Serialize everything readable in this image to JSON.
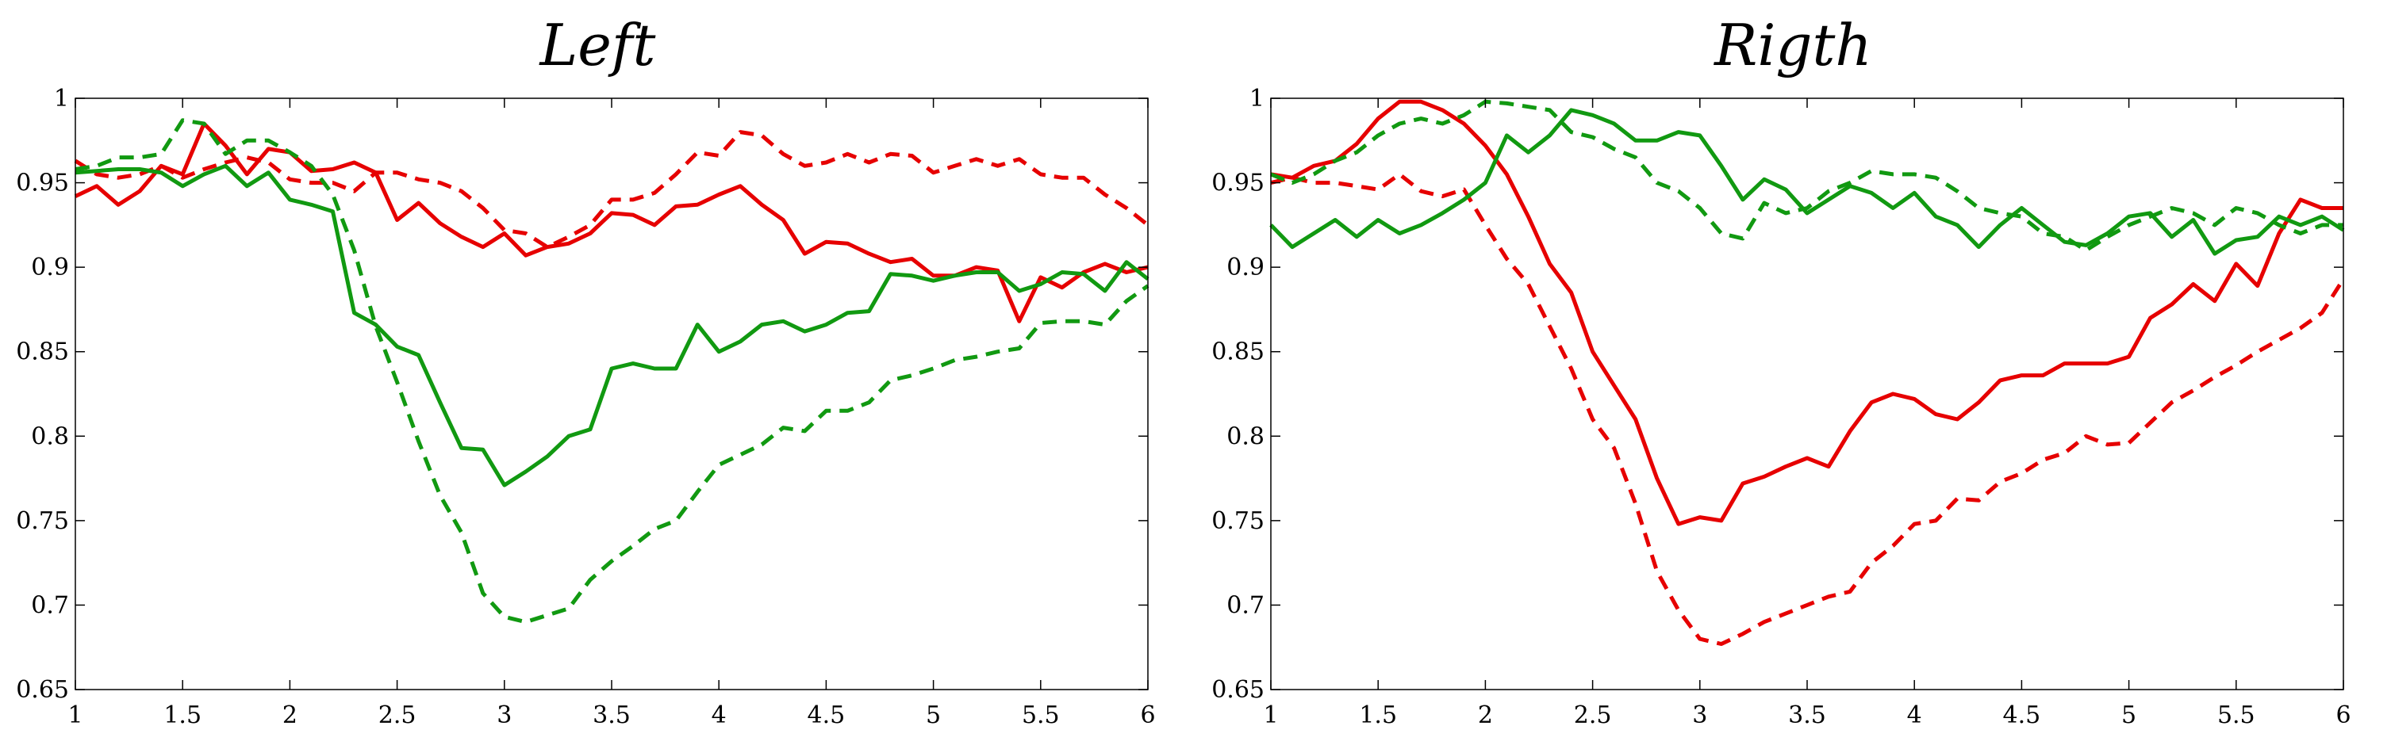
{
  "chart_data": [
    {
      "type": "line",
      "title": "Left",
      "xlim": [
        1,
        6
      ],
      "ylim": [
        0.65,
        1
      ],
      "xticks": [
        "1",
        "1.5",
        "2",
        "2.5",
        "3",
        "3.5",
        "4",
        "4.5",
        "5",
        "5.5",
        "6"
      ],
      "yticks": [
        "0.65",
        "0.7",
        "0.75",
        "0.8",
        "0.85",
        "0.9",
        "0.95",
        "1"
      ],
      "grid": false,
      "series": [
        {
          "color": "#e60000",
          "dash": "solid",
          "x": [
            1,
            1.1,
            1.2,
            1.3,
            1.4,
            1.5,
            1.6,
            1.7,
            1.8,
            1.9,
            2,
            2.1,
            2.2,
            2.3,
            2.4,
            2.5,
            2.6,
            2.7,
            2.8,
            2.9,
            3,
            3.1,
            3.2,
            3.3,
            3.4,
            3.5,
            3.6,
            3.7,
            3.8,
            3.9,
            4,
            4.1,
            4.2,
            4.3,
            4.4,
            4.5,
            4.6,
            4.7,
            4.8,
            4.9,
            5,
            5.1,
            5.2,
            5.3,
            5.4,
            5.5,
            5.6,
            5.7,
            5.8,
            5.9,
            6
          ],
          "y": [
            0.942,
            0.948,
            0.937,
            0.945,
            0.96,
            0.955,
            0.985,
            0.972,
            0.955,
            0.97,
            0.968,
            0.957,
            0.958,
            0.962,
            0.956,
            0.928,
            0.938,
            0.926,
            0.918,
            0.912,
            0.92,
            0.907,
            0.912,
            0.914,
            0.92,
            0.932,
            0.931,
            0.925,
            0.936,
            0.937,
            0.943,
            0.948,
            0.937,
            0.928,
            0.908,
            0.915,
            0.914,
            0.908,
            0.903,
            0.905,
            0.895,
            0.895,
            0.9,
            0.898,
            0.868,
            0.894,
            0.888,
            0.897,
            0.902,
            0.897,
            0.9
          ]
        },
        {
          "color": "#e60000",
          "dash": "dashed",
          "x": [
            1,
            1.1,
            1.2,
            1.3,
            1.4,
            1.5,
            1.6,
            1.7,
            1.8,
            1.9,
            2,
            2.1,
            2.2,
            2.3,
            2.4,
            2.5,
            2.6,
            2.7,
            2.8,
            2.9,
            3,
            3.1,
            3.2,
            3.3,
            3.4,
            3.5,
            3.6,
            3.7,
            3.8,
            3.9,
            4,
            4.1,
            4.2,
            4.3,
            4.4,
            4.5,
            4.6,
            4.7,
            4.8,
            4.9,
            5,
            5.1,
            5.2,
            5.3,
            5.4,
            5.5,
            5.6,
            5.7,
            5.8,
            5.9,
            6
          ],
          "y": [
            0.963,
            0.955,
            0.953,
            0.955,
            0.96,
            0.953,
            0.958,
            0.962,
            0.965,
            0.962,
            0.952,
            0.95,
            0.95,
            0.945,
            0.956,
            0.956,
            0.952,
            0.95,
            0.945,
            0.935,
            0.922,
            0.92,
            0.912,
            0.918,
            0.925,
            0.94,
            0.94,
            0.944,
            0.955,
            0.968,
            0.966,
            0.98,
            0.978,
            0.967,
            0.96,
            0.962,
            0.967,
            0.962,
            0.967,
            0.966,
            0.956,
            0.96,
            0.964,
            0.96,
            0.964,
            0.955,
            0.953,
            0.953,
            0.943,
            0.935,
            0.925
          ]
        },
        {
          "color": "#119911",
          "dash": "solid",
          "x": [
            1,
            1.1,
            1.2,
            1.3,
            1.4,
            1.5,
            1.6,
            1.7,
            1.8,
            1.9,
            2,
            2.1,
            2.2,
            2.3,
            2.4,
            2.5,
            2.6,
            2.7,
            2.8,
            2.9,
            3,
            3.1,
            3.2,
            3.3,
            3.4,
            3.5,
            3.6,
            3.7,
            3.8,
            3.9,
            4,
            4.1,
            4.2,
            4.3,
            4.4,
            4.5,
            4.6,
            4.7,
            4.8,
            4.9,
            5,
            5.1,
            5.2,
            5.3,
            5.4,
            5.5,
            5.6,
            5.7,
            5.8,
            5.9,
            6
          ],
          "y": [
            0.956,
            0.957,
            0.958,
            0.958,
            0.956,
            0.948,
            0.955,
            0.96,
            0.948,
            0.956,
            0.94,
            0.937,
            0.933,
            0.873,
            0.866,
            0.853,
            0.848,
            0.82,
            0.793,
            0.792,
            0.771,
            0.779,
            0.788,
            0.8,
            0.804,
            0.84,
            0.843,
            0.84,
            0.84,
            0.866,
            0.85,
            0.856,
            0.866,
            0.868,
            0.862,
            0.866,
            0.873,
            0.874,
            0.896,
            0.895,
            0.892,
            0.895,
            0.897,
            0.897,
            0.886,
            0.89,
            0.897,
            0.896,
            0.886,
            0.903,
            0.893
          ]
        },
        {
          "color": "#119911",
          "dash": "dashed",
          "x": [
            1,
            1.1,
            1.2,
            1.3,
            1.4,
            1.5,
            1.6,
            1.7,
            1.8,
            1.9,
            2,
            2.1,
            2.2,
            2.3,
            2.4,
            2.5,
            2.6,
            2.7,
            2.8,
            2.9,
            3,
            3.1,
            3.2,
            3.3,
            3.4,
            3.5,
            3.6,
            3.7,
            3.8,
            3.9,
            4,
            4.1,
            4.2,
            4.3,
            4.4,
            4.5,
            4.6,
            4.7,
            4.8,
            4.9,
            5,
            5.1,
            5.2,
            5.3,
            5.4,
            5.5,
            5.6,
            5.7,
            5.8,
            5.9,
            6
          ],
          "y": [
            0.958,
            0.96,
            0.965,
            0.965,
            0.967,
            0.987,
            0.985,
            0.967,
            0.975,
            0.975,
            0.968,
            0.96,
            0.943,
            0.91,
            0.865,
            0.832,
            0.797,
            0.765,
            0.743,
            0.707,
            0.693,
            0.69,
            0.694,
            0.698,
            0.715,
            0.726,
            0.735,
            0.745,
            0.75,
            0.767,
            0.783,
            0.789,
            0.795,
            0.805,
            0.803,
            0.815,
            0.815,
            0.82,
            0.833,
            0.836,
            0.84,
            0.845,
            0.847,
            0.85,
            0.852,
            0.867,
            0.868,
            0.868,
            0.866,
            0.88,
            0.889
          ]
        }
      ]
    },
    {
      "type": "line",
      "title": "Rigth",
      "xlim": [
        1,
        6
      ],
      "ylim": [
        0.65,
        1
      ],
      "xticks": [
        "1",
        "1.5",
        "2",
        "2.5",
        "3",
        "3.5",
        "4",
        "4.5",
        "5",
        "5.5",
        "6"
      ],
      "yticks": [
        "0.65",
        "0.7",
        "0.75",
        "0.8",
        "0.85",
        "0.9",
        "0.95",
        "1"
      ],
      "grid": false,
      "series": [
        {
          "color": "#e60000",
          "dash": "solid",
          "x": [
            1,
            1.1,
            1.2,
            1.3,
            1.4,
            1.5,
            1.6,
            1.7,
            1.8,
            1.9,
            2,
            2.1,
            2.2,
            2.3,
            2.4,
            2.5,
            2.6,
            2.7,
            2.8,
            2.9,
            3,
            3.1,
            3.2,
            3.3,
            3.4,
            3.5,
            3.6,
            3.7,
            3.8,
            3.9,
            4,
            4.1,
            4.2,
            4.3,
            4.4,
            4.5,
            4.6,
            4.7,
            4.8,
            4.9,
            5,
            5.1,
            5.2,
            5.3,
            5.4,
            5.5,
            5.6,
            5.7,
            5.8,
            5.9,
            6
          ],
          "y": [
            0.955,
            0.953,
            0.96,
            0.963,
            0.973,
            0.988,
            0.998,
            0.998,
            0.993,
            0.985,
            0.972,
            0.955,
            0.93,
            0.902,
            0.885,
            0.85,
            0.83,
            0.81,
            0.775,
            0.748,
            0.752,
            0.75,
            0.772,
            0.776,
            0.782,
            0.787,
            0.782,
            0.803,
            0.82,
            0.825,
            0.822,
            0.813,
            0.81,
            0.82,
            0.833,
            0.836,
            0.836,
            0.843,
            0.843,
            0.843,
            0.847,
            0.87,
            0.878,
            0.89,
            0.88,
            0.902,
            0.889,
            0.92,
            0.94,
            0.935,
            0.935
          ]
        },
        {
          "color": "#e60000",
          "dash": "dashed",
          "x": [
            1,
            1.1,
            1.2,
            1.3,
            1.4,
            1.5,
            1.6,
            1.7,
            1.8,
            1.9,
            2,
            2.1,
            2.2,
            2.3,
            2.4,
            2.5,
            2.6,
            2.7,
            2.8,
            2.9,
            3,
            3.1,
            3.2,
            3.3,
            3.4,
            3.5,
            3.6,
            3.7,
            3.8,
            3.9,
            4,
            4.1,
            4.2,
            4.3,
            4.4,
            4.5,
            4.6,
            4.7,
            4.8,
            4.9,
            5,
            5.1,
            5.2,
            5.3,
            5.4,
            5.5,
            5.6,
            5.7,
            5.8,
            5.9,
            6
          ],
          "y": [
            0.95,
            0.953,
            0.95,
            0.95,
            0.948,
            0.946,
            0.955,
            0.945,
            0.942,
            0.946,
            0.925,
            0.905,
            0.89,
            0.865,
            0.84,
            0.81,
            0.793,
            0.76,
            0.72,
            0.697,
            0.68,
            0.677,
            0.683,
            0.69,
            0.695,
            0.7,
            0.705,
            0.708,
            0.725,
            0.735,
            0.748,
            0.75,
            0.763,
            0.762,
            0.773,
            0.778,
            0.786,
            0.79,
            0.8,
            0.795,
            0.796,
            0.808,
            0.82,
            0.827,
            0.835,
            0.842,
            0.85,
            0.857,
            0.864,
            0.873,
            0.893
          ]
        },
        {
          "color": "#119911",
          "dash": "solid",
          "x": [
            1,
            1.1,
            1.2,
            1.3,
            1.4,
            1.5,
            1.6,
            1.7,
            1.8,
            1.9,
            2,
            2.1,
            2.2,
            2.3,
            2.4,
            2.5,
            2.6,
            2.7,
            2.8,
            2.9,
            3,
            3.1,
            3.2,
            3.3,
            3.4,
            3.5,
            3.6,
            3.7,
            3.8,
            3.9,
            4,
            4.1,
            4.2,
            4.3,
            4.4,
            4.5,
            4.6,
            4.7,
            4.8,
            4.9,
            5,
            5.1,
            5.2,
            5.3,
            5.4,
            5.5,
            5.6,
            5.7,
            5.8,
            5.9,
            6
          ],
          "y": [
            0.925,
            0.912,
            0.92,
            0.928,
            0.918,
            0.928,
            0.92,
            0.925,
            0.932,
            0.94,
            0.95,
            0.978,
            0.968,
            0.978,
            0.993,
            0.99,
            0.985,
            0.975,
            0.975,
            0.98,
            0.978,
            0.96,
            0.94,
            0.952,
            0.946,
            0.932,
            0.94,
            0.948,
            0.944,
            0.935,
            0.944,
            0.93,
            0.925,
            0.912,
            0.925,
            0.935,
            0.925,
            0.915,
            0.913,
            0.92,
            0.93,
            0.932,
            0.918,
            0.928,
            0.908,
            0.916,
            0.918,
            0.93,
            0.925,
            0.93,
            0.922
          ]
        },
        {
          "color": "#119911",
          "dash": "dashed",
          "x": [
            1,
            1.1,
            1.2,
            1.3,
            1.4,
            1.5,
            1.6,
            1.7,
            1.8,
            1.9,
            2,
            2.1,
            2.2,
            2.3,
            2.4,
            2.5,
            2.6,
            2.7,
            2.8,
            2.9,
            3,
            3.1,
            3.2,
            3.3,
            3.4,
            3.5,
            3.6,
            3.7,
            3.8,
            3.9,
            4,
            4.1,
            4.2,
            4.3,
            4.4,
            4.5,
            4.6,
            4.7,
            4.8,
            4.9,
            5,
            5.1,
            5.2,
            5.3,
            5.4,
            5.5,
            5.6,
            5.7,
            5.8,
            5.9,
            6
          ],
          "y": [
            0.955,
            0.95,
            0.955,
            0.963,
            0.968,
            0.978,
            0.985,
            0.988,
            0.985,
            0.99,
            0.998,
            0.997,
            0.995,
            0.993,
            0.98,
            0.977,
            0.97,
            0.965,
            0.95,
            0.945,
            0.935,
            0.92,
            0.917,
            0.938,
            0.932,
            0.935,
            0.945,
            0.95,
            0.957,
            0.955,
            0.955,
            0.953,
            0.945,
            0.935,
            0.932,
            0.93,
            0.92,
            0.918,
            0.91,
            0.918,
            0.925,
            0.93,
            0.935,
            0.932,
            0.925,
            0.935,
            0.932,
            0.925,
            0.92,
            0.925,
            0.925
          ]
        }
      ]
    }
  ]
}
